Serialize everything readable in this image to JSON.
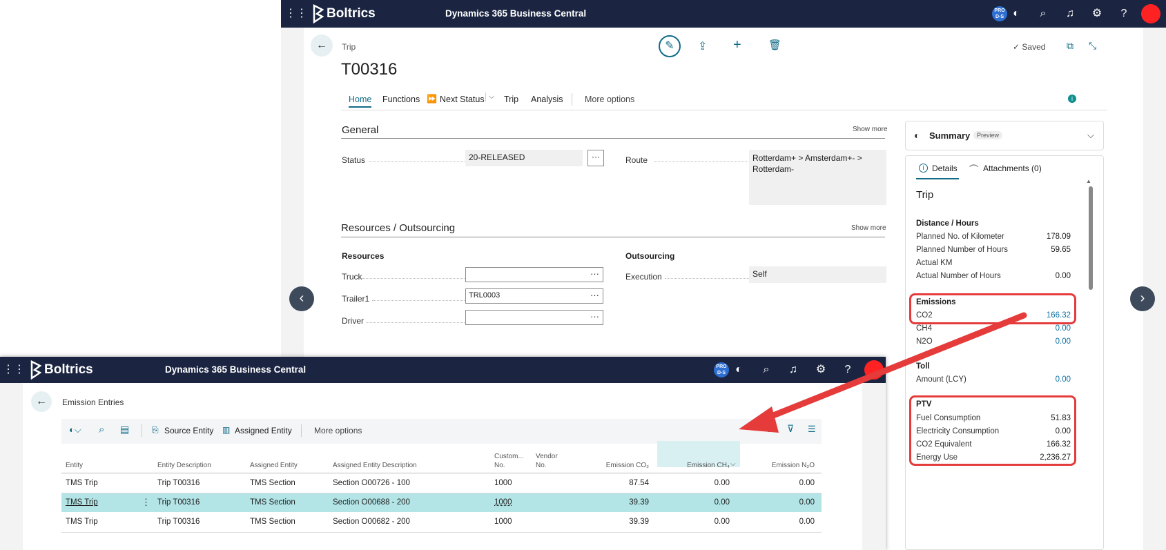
{
  "back_window": {
    "brand": "Boltrics",
    "product": "Dynamics 365 Business Central",
    "badge": "PRO D-S",
    "breadcrumb": "Trip",
    "title": "T00316",
    "saved": "Saved",
    "tabs": [
      "Home",
      "Functions",
      "Next Status",
      "Trip",
      "Analysis",
      "More options"
    ],
    "general": {
      "title": "General",
      "show_more": "Show more",
      "status_label": "Status",
      "status_value": "20-RELEASED",
      "route_label": "Route",
      "route_value": "Rotterdam+ > Amsterdam+- > Rotterdam-"
    },
    "resources": {
      "title": "Resources / Outsourcing",
      "show_more": "Show more",
      "resources_head": "Resources",
      "outsourcing_head": "Outsourcing",
      "truck_label": "Truck",
      "truck_value": "",
      "trailer_label": "Trailer1",
      "trailer_value": "TRL0003",
      "driver_label": "Driver",
      "driver_value": "",
      "execution_label": "Execution",
      "execution_value": "Self"
    },
    "summary": {
      "title": "Summary",
      "preview": "Preview",
      "tab_details": "Details",
      "tab_attachments": "Attachments (0)",
      "heading": "Trip",
      "distance_head": "Distance / Hours",
      "planned_km_label": "Planned No. of Kilometer",
      "planned_km": "178.09",
      "planned_hours_label": "Planned Number of Hours",
      "planned_hours": "59.65",
      "actual_km_label": "Actual KM",
      "actual_hours_label": "Actual Number of Hours",
      "actual_hours": "0.00",
      "emissions_head": "Emissions",
      "co2_label": "CO2",
      "co2": "166.32",
      "ch4_label": "CH4",
      "ch4": "0.00",
      "n2o_label": "N2O",
      "n2o": "0.00",
      "toll_head": "Toll",
      "amount_label": "Amount (LCY)",
      "amount": "0.00",
      "ptv_head": "PTV",
      "fuel_label": "Fuel Consumption",
      "fuel": "51.83",
      "elec_label": "Electricity Consumption",
      "elec": "0.00",
      "co2eq_label": "CO2 Equivalent",
      "co2eq": "166.32",
      "energy_label": "Energy Use",
      "energy": "2,236.27"
    }
  },
  "front_window": {
    "brand": "Boltrics",
    "product": "Dynamics 365 Business Central",
    "badge": "PRO D-S",
    "page_title": "Emission Entries",
    "toolbar": {
      "source_entity": "Source Entity",
      "assigned_entity": "Assigned Entity",
      "more_options": "More options"
    },
    "columns": [
      "Entity",
      "Entity Description",
      "Assigned Entity",
      "Assigned Entity Description",
      "Custom... No.",
      "Vendor No.",
      "Emission CO₂",
      "Emission CH₄",
      "Emission N₂O"
    ],
    "col_custom_1": "Custom...",
    "col_custom_2": "No.",
    "col_vendor_1": "Vendor",
    "col_vendor_2": "No.",
    "rows": [
      {
        "entity": "TMS Trip",
        "desc": "Trip T00316",
        "assigned": "TMS Section",
        "assigned_desc": "Section O00726 - 100",
        "cust": "1000",
        "vendor": "",
        "co2": "87.54",
        "ch4": "0.00",
        "n2o": "0.00"
      },
      {
        "entity": "TMS Trip",
        "desc": "Trip T00316",
        "assigned": "TMS Section",
        "assigned_desc": "Section O00688 - 200",
        "cust": "1000",
        "vendor": "",
        "co2": "39.39",
        "ch4": "0.00",
        "n2o": "0.00"
      },
      {
        "entity": "TMS Trip",
        "desc": "Trip T00316",
        "assigned": "TMS Section",
        "assigned_desc": "Section O00682 - 200",
        "cust": "1000",
        "vendor": "",
        "co2": "39.39",
        "ch4": "0.00",
        "n2o": "0.00"
      }
    ]
  },
  "colors": {
    "navbar": "#1b2541",
    "accent": "#0f6b86",
    "highlight": "#e53b3b",
    "selected_row": "#b3e4e6"
  }
}
